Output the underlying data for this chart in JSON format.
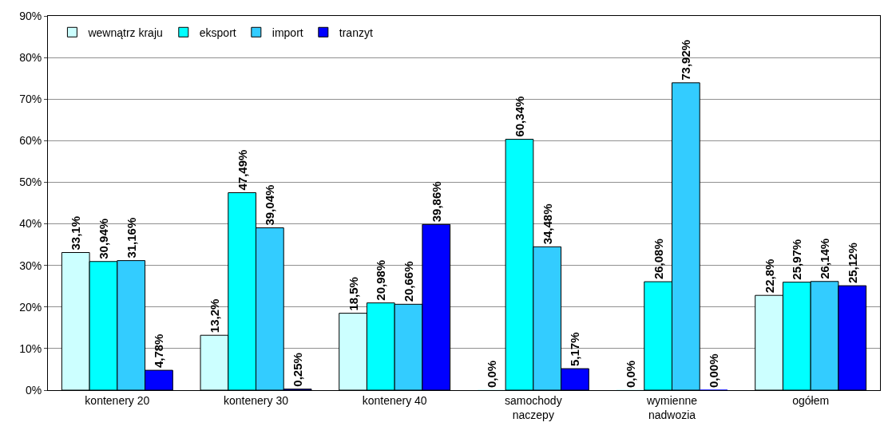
{
  "chart_data": {
    "type": "bar",
    "categories": [
      "kontenery 20",
      "kontenery 30",
      "kontenery 40",
      "samochody naczepy",
      "wymienne nadwozia",
      "ogółem"
    ],
    "series": [
      {
        "name": "wewnątrz kraju",
        "color": "#ccffff",
        "values": [
          33.1,
          13.2,
          18.5,
          0.0,
          0.0,
          22.8
        ],
        "value_labels": [
          "33,1%",
          "13,2%",
          "18,5%",
          "0,0%",
          "0,0%",
          "22,8%"
        ]
      },
      {
        "name": "eksport",
        "color": "#00ffff",
        "values": [
          30.94,
          47.49,
          20.98,
          60.34,
          26.08,
          25.97
        ],
        "value_labels": [
          "30,94%",
          "47,49%",
          "20,98%",
          "60,34%",
          "26,08%",
          "25,97%"
        ]
      },
      {
        "name": "import",
        "color": "#33ccff",
        "values": [
          31.16,
          39.04,
          20.66,
          34.48,
          73.92,
          26.14
        ],
        "value_labels": [
          "31,16%",
          "39,04%",
          "20,66%",
          "34,48%",
          "73,92%",
          "26,14%"
        ]
      },
      {
        "name": "tranzyt",
        "color": "#0000ff",
        "values": [
          4.78,
          0.25,
          39.86,
          5.17,
          0.0,
          25.12
        ],
        "value_labels": [
          "4,78%",
          "0,25%",
          "39,86%",
          "5,17%",
          "0,00%",
          "25,12%"
        ]
      }
    ],
    "ylim": [
      0,
      90
    ],
    "yticks": [
      {
        "value": 0,
        "label": "0%"
      },
      {
        "value": 10,
        "label": "10%"
      },
      {
        "value": 20,
        "label": "20%"
      },
      {
        "value": 30,
        "label": "30%"
      },
      {
        "value": 40,
        "label": "40%"
      },
      {
        "value": 50,
        "label": "50%"
      },
      {
        "value": 60,
        "label": "60%"
      },
      {
        "value": 70,
        "label": "70%"
      },
      {
        "value": 80,
        "label": "80%"
      },
      {
        "value": 90,
        "label": "90%"
      }
    ],
    "grid": "y",
    "legend": "top left"
  }
}
